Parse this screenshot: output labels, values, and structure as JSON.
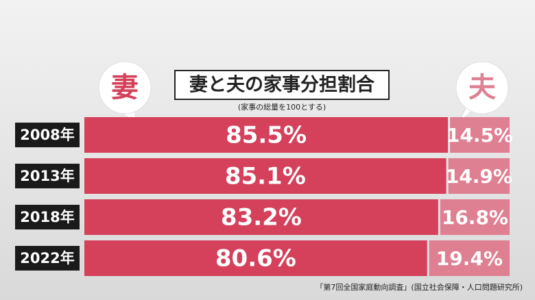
{
  "chart_data": {
    "type": "stacked-bar-horizontal",
    "title": "妻と夫の家事分担割合",
    "subtitle": "(家事の総量を100とする)",
    "source": "「第7回全国家庭動向調査」(国立社会保障・人口問題研究所)",
    "categories": [
      "2008年",
      "2013年",
      "2018年",
      "2022年"
    ],
    "series": [
      {
        "name": "妻",
        "color": "#d5405a",
        "values": [
          85.5,
          85.1,
          83.2,
          80.6
        ],
        "value_labels": [
          "85.5%",
          "85.1%",
          "83.2%",
          "80.6%"
        ]
      },
      {
        "name": "夫",
        "color": "#df7f92",
        "values": [
          14.5,
          14.9,
          16.8,
          19.4
        ],
        "value_labels": [
          "14.5%",
          "14.9%",
          "16.8%",
          "19.4%"
        ]
      }
    ],
    "xlim": [
      0,
      100
    ]
  }
}
